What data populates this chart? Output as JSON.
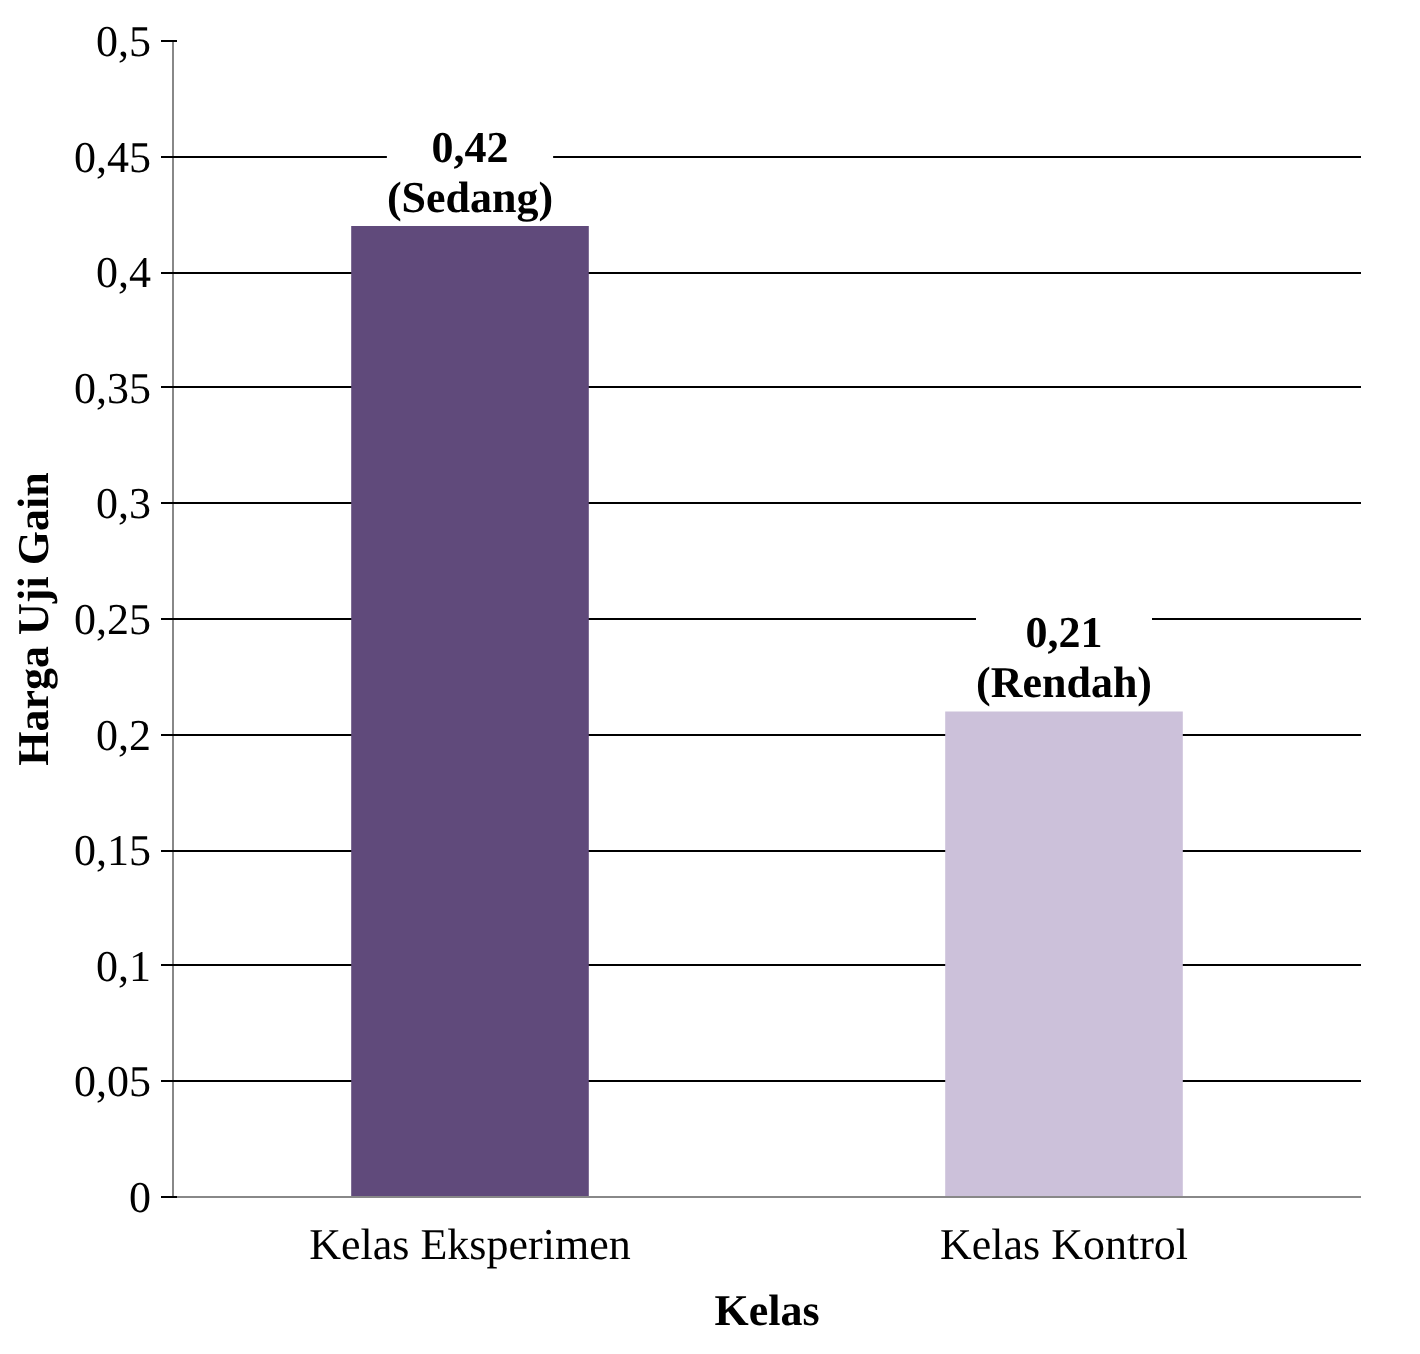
{
  "chart_data": {
    "type": "bar",
    "xlabel": "Kelas",
    "ylabel": "Harga Uji Gain",
    "categories": [
      "Kelas Eksperimen",
      "Kelas Kontrol"
    ],
    "values": [
      0.42,
      0.21
    ],
    "colors": [
      "#604a7b",
      "#ccc1da"
    ],
    "value_labels": [
      "0,42\n(Sedang)",
      "0,21\n(Rendah)"
    ],
    "ylim": [
      0,
      0.5
    ],
    "yticks": [
      0,
      {
        "value": 0.05,
        "label": "0,05"
      },
      {
        "value": 0.1,
        "label": "0,1"
      },
      {
        "value": 0.15,
        "label": "0,15"
      },
      {
        "value": 0.2,
        "label": "0,2"
      },
      {
        "value": 0.25,
        "label": "0,25"
      },
      {
        "value": 0.3,
        "label": "0,3"
      },
      {
        "value": 0.35,
        "label": "0,35"
      },
      {
        "value": 0.4,
        "label": "0,4"
      },
      {
        "value": 0.45,
        "label": "0,45"
      },
      {
        "value": 0.5,
        "label": "0,5"
      }
    ],
    "grid": "y"
  }
}
